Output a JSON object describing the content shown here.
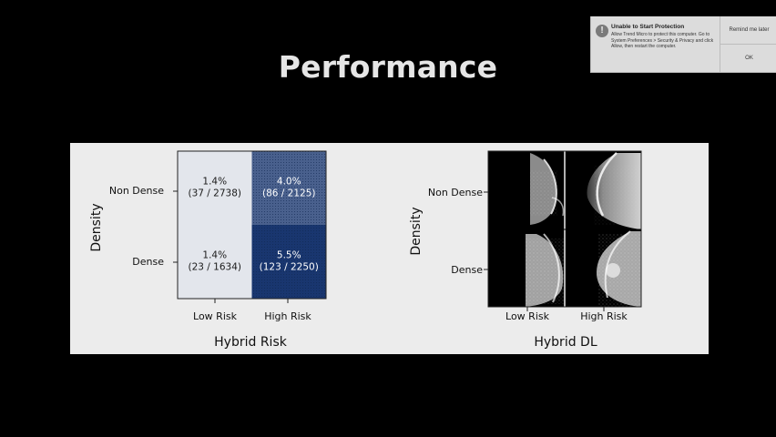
{
  "slide": {
    "title": "Performance"
  },
  "notification": {
    "title": "Unable to Start Protection",
    "body": "Allow Trend Micro to protect this computer. Go to System Preferences > Security & Privacy and click Allow, then restart the computer.",
    "remind_label": "Remind me later",
    "ok_label": "OK",
    "icon": "alert-icon"
  },
  "chart_data": [
    {
      "type": "heatmap",
      "xlabel": "Hybrid Risk",
      "ylabel": "Density",
      "x_categories": [
        "Low Risk",
        "High Risk"
      ],
      "y_categories": [
        "Non Dense",
        "Dense"
      ],
      "cells": [
        {
          "row": "Non Dense",
          "col": "Low Risk",
          "value": 1.4,
          "label": "1.4%",
          "count": "(37 / 2738)"
        },
        {
          "row": "Non Dense",
          "col": "High Risk",
          "value": 4.0,
          "label": "4.0%",
          "count": "(86 / 2125)"
        },
        {
          "row": "Dense",
          "col": "Low Risk",
          "value": 1.4,
          "label": "1.4%",
          "count": "(23 / 1634)"
        },
        {
          "row": "Dense",
          "col": "High Risk",
          "value": 5.5,
          "label": "5.5%",
          "count": "(123 / 2250)"
        }
      ],
      "colors": {
        "low": "#e3e6ec",
        "mid": "#dfe2e9",
        "high": "#1b3a78",
        "highest": "#19366f",
        "text_dark": "#1a1a1a",
        "text_light": "#ffffff"
      }
    },
    {
      "type": "image-grid",
      "xlabel": "Hybrid DL",
      "ylabel": "Density",
      "x_categories": [
        "Low Risk",
        "High Risk"
      ],
      "y_categories": [
        "Non Dense",
        "Dense"
      ]
    }
  ]
}
